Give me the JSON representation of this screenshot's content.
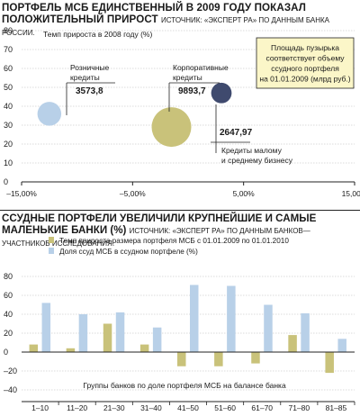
{
  "chart_top": {
    "title_line1": "ПОРТФЕЛЬ МСБ ЕДИНСТВЕННЫЙ В 2009 ГОДУ ПОКАЗАЛ",
    "title_line2": "ПОЛОЖИТЕЛЬНЫЙ ПРИРОСТ",
    "source": "ИСТОЧНИК: «ЭКСПЕРТ РА» ПО ДАННЫМ БАНКА РОССИИ.",
    "ylabel": "Темп прироста в 2008 году (%)",
    "note": "Площадь пузырька соответствует объему ссудного портфеля на 01.01.2009 (млрд руб.)",
    "colors": {
      "retail": "#b8d0e8",
      "corporate": "#c9c27a",
      "sme": "#3f4a6e",
      "note_bg": "#fbf6c8"
    }
  },
  "chart_bottom": {
    "title_line1": "ССУДНЫЕ ПОРТФЕЛИ УВЕЛИЧИЛИ КРУПНЕЙШИЕ И САМЫЕ",
    "title_line2": "МАЛЕНЬКИЕ БАНКИ (%)",
    "source": "ИСТОЧНИК: «ЭКСПЕРТ РА» ПО ДАННЫМ БАНКОВ—УЧАСТНИКОВ ИССЛЕДОВАНИЯ.",
    "xlabel": "Группы банков по доле портфеля МСБ на балансе банка",
    "colors": {
      "growth": "#c9c27a",
      "share": "#b8d0e8"
    }
  },
  "chart_data": [
    {
      "type": "scatter",
      "title": "ПОРТФЕЛЬ МСБ ЕДИНСТВЕННЫЙ В 2009 ГОДУ ПОКАЗАЛ ПОЛОЖИТЕЛЬНЫЙ ПРИРОСТ",
      "ylabel": "Темп прироста в 2008 году (%)",
      "xlim": [
        -0.15,
        0.15
      ],
      "ylim": [
        0,
        80
      ],
      "x_ticks": [
        "–15,00%",
        "–5,00%",
        "5,00%",
        "15,00%"
      ],
      "x_tick_values": [
        -0.15,
        -0.05,
        0.05,
        0.15
      ],
      "y_ticks": [
        0,
        10,
        20,
        30,
        40,
        50,
        60,
        70,
        80
      ],
      "points": [
        {
          "name": "Розничные кредиты",
          "x": -0.125,
          "y": 36,
          "size": 3573.8,
          "size_label": "3573,8",
          "color": "#b8d0e8"
        },
        {
          "name": "Корпоративные кредиты",
          "x": -0.015,
          "y": 29,
          "size": 9893.7,
          "size_label": "9893,7",
          "color": "#c9c27a"
        },
        {
          "name": "Кредиты малому и среднему бизнесу",
          "x": 0.03,
          "y": 47,
          "size": 2647.97,
          "size_label": "2647,97",
          "color": "#3f4a6e"
        }
      ],
      "grid": "horizontal"
    },
    {
      "type": "bar",
      "title": "ССУДНЫЕ ПОРТФЕЛИ УВЕЛИЧИЛИ КРУПНЕЙШИЕ И САМЫЕ МАЛЕНЬКИЕ БАНКИ (%)",
      "xlabel": "Группы банков по доле портфеля МСБ на балансе банка",
      "categories": [
        "1–10",
        "11–20",
        "21–30",
        "31–40",
        "41–50",
        "51–60",
        "61–70",
        "71–80",
        "81–85"
      ],
      "ylim": [
        -40,
        80
      ],
      "y_ticks": [
        -40,
        -20,
        0,
        20,
        40,
        60,
        80
      ],
      "series": [
        {
          "name": "Темп прироста размера портфеля МСБ с 01.01.2009 по 01.01.2010",
          "color": "#c9c27a",
          "values": [
            8,
            4,
            30,
            8,
            -15,
            -15,
            -12,
            18,
            -22
          ]
        },
        {
          "name": "Доля ссуд МСБ в ссудном портфеле (%)",
          "color": "#b8d0e8",
          "values": [
            52,
            40,
            42,
            26,
            71,
            70,
            50,
            41,
            14
          ]
        }
      ],
      "legend": "top-left",
      "grid": "horizontal"
    }
  ]
}
